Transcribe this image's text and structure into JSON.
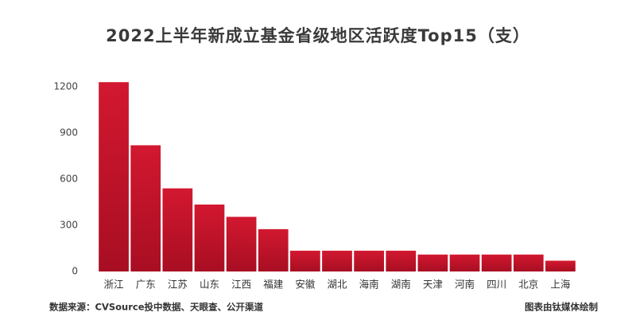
{
  "chart_data": {
    "type": "bar",
    "title": "2022上半年新成立基金省级地区活跃度Top15（支）",
    "categories": [
      "浙江",
      "广东",
      "江苏",
      "山东",
      "江西",
      "福建",
      "安徽",
      "湖北",
      "海南",
      "湖南",
      "天津",
      "河南",
      "四川",
      "北京",
      "上海"
    ],
    "values": [
      1230,
      820,
      540,
      435,
      355,
      275,
      135,
      135,
      135,
      135,
      110,
      110,
      110,
      110,
      70
    ],
    "color": "#c8142c",
    "ylim": [
      0,
      1200
    ],
    "yticks": [
      0,
      300,
      600,
      900,
      1200
    ],
    "grid": false,
    "source": "数据来源：CVSource投中数据、天眼查、公开渠道",
    "credit": "图表由钛媒体绘制"
  }
}
